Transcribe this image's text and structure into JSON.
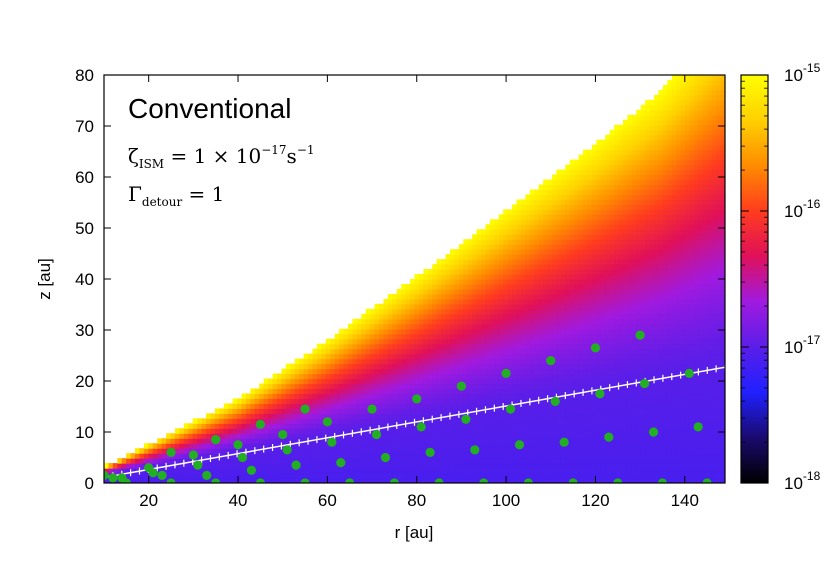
{
  "chart_data": {
    "type": "heatmap",
    "title": "Conventional",
    "annotations": [
      {
        "base": "ζ",
        "sub": "ISM",
        "rest": " = 1 × 10",
        "sup": "−17",
        "unit": "s",
        "unit_sup": "−1"
      },
      {
        "base": "Γ",
        "sub": "detour",
        "rest": " = 1"
      }
    ],
    "xlabel": "r [au]",
    "ylabel": "z [au]",
    "xlim": [
      10,
      149
    ],
    "ylim": [
      0,
      80
    ],
    "xticks": [
      "20",
      "40",
      "60",
      "80",
      "100",
      "120",
      "140"
    ],
    "xtick_values": [
      20,
      40,
      60,
      80,
      100,
      120,
      140
    ],
    "yticks": [
      "0",
      "10",
      "20",
      "30",
      "40",
      "50",
      "60",
      "70",
      "80"
    ],
    "ytick_values": [
      0,
      10,
      20,
      30,
      40,
      50,
      60,
      70,
      80
    ],
    "colorbar": {
      "scale": "log",
      "range": [
        1e-18,
        1e-15
      ],
      "ticks": [
        {
          "base": "10",
          "exp": "-15",
          "value": 1e-15
        },
        {
          "base": "10",
          "exp": "-16",
          "value": 1e-16
        },
        {
          "base": "10",
          "exp": "-17",
          "value": 1e-17
        },
        {
          "base": "10",
          "exp": "-18",
          "value": 1e-18
        }
      ],
      "colors": [
        "#000000",
        "#1a0a6e",
        "#2020ff",
        "#5a1ee8",
        "#a01ae0",
        "#e0105a",
        "#ff3c1e",
        "#ff8c00",
        "#ffd000",
        "#ffff00"
      ]
    },
    "surface_boundary": [
      [
        10,
        3.2
      ],
      [
        40,
        16.5
      ],
      [
        60,
        28
      ],
      [
        80,
        40.5
      ],
      [
        100,
        53.5
      ],
      [
        120,
        66.5
      ],
      [
        135,
        77
      ],
      [
        138,
        80
      ]
    ],
    "midplane_line": [
      [
        10,
        1.1
      ],
      [
        149,
        22.7
      ]
    ],
    "series": [
      {
        "marker": "green-dot",
        "color": "#22b022",
        "points": [
          [
            10,
            1.5
          ],
          [
            12,
            1
          ],
          [
            14,
            1
          ],
          [
            15,
            0
          ],
          [
            20,
            3
          ],
          [
            21,
            2
          ],
          [
            23,
            1.5
          ],
          [
            25,
            0
          ],
          [
            25,
            6
          ],
          [
            30,
            5.5
          ],
          [
            31,
            3.5
          ],
          [
            33,
            1.5
          ],
          [
            35,
            0
          ],
          [
            35,
            8.5
          ],
          [
            40,
            7.5
          ],
          [
            41,
            5
          ],
          [
            43,
            2.5
          ],
          [
            45,
            0
          ],
          [
            45,
            11.5
          ],
          [
            50,
            9.5
          ],
          [
            51,
            6.5
          ],
          [
            53,
            3.5
          ],
          [
            55,
            0
          ],
          [
            55,
            14.5
          ],
          [
            60,
            12
          ],
          [
            61,
            8
          ],
          [
            63,
            4
          ],
          [
            65,
            0
          ],
          [
            70,
            14.5
          ],
          [
            71,
            9.5
          ],
          [
            73,
            5
          ],
          [
            75,
            0
          ],
          [
            80,
            16.5
          ],
          [
            81,
            11
          ],
          [
            83,
            6
          ],
          [
            85,
            0
          ],
          [
            90,
            19
          ],
          [
            91,
            12.5
          ],
          [
            93,
            6.5
          ],
          [
            95,
            0
          ],
          [
            100,
            21.5
          ],
          [
            101,
            14.5
          ],
          [
            103,
            7.5
          ],
          [
            105,
            0
          ],
          [
            110,
            24
          ],
          [
            111,
            16
          ],
          [
            113,
            8
          ],
          [
            115,
            0
          ],
          [
            120,
            26.5
          ],
          [
            121,
            17.5
          ],
          [
            123,
            9
          ],
          [
            125,
            0
          ],
          [
            130,
            29
          ],
          [
            131,
            19.5
          ],
          [
            133,
            10
          ],
          [
            135,
            0
          ],
          [
            141,
            21.5
          ],
          [
            143,
            11
          ],
          [
            145,
            0
          ]
        ]
      }
    ]
  }
}
